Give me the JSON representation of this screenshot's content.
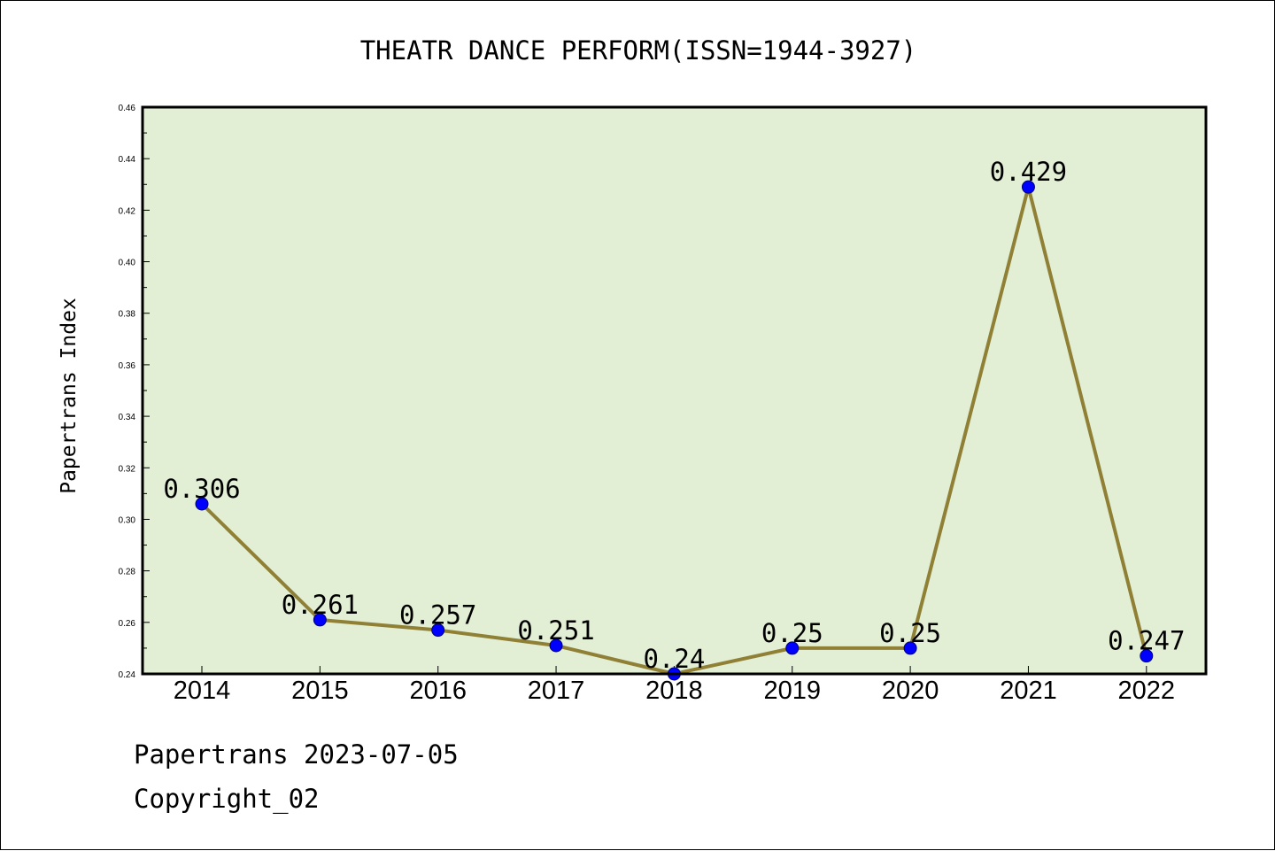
{
  "chart_data": {
    "type": "line",
    "title": "THEATR DANCE PERFORM(ISSN=1944-3927)",
    "xlabel": "",
    "ylabel": "Papertrans Index",
    "categories": [
      "2014",
      "2015",
      "2016",
      "2017",
      "2018",
      "2019",
      "2020",
      "2021",
      "2022"
    ],
    "series": [
      {
        "values": [
          0.306,
          0.261,
          0.257,
          0.251,
          0.24,
          0.25,
          0.25,
          0.429,
          0.247
        ],
        "labels": [
          "0.306",
          "0.261",
          "0.257",
          "0.251",
          "0.24",
          "0.25",
          "0.25",
          "0.429",
          "0.247"
        ]
      }
    ],
    "ylim": [
      0.24,
      0.46
    ],
    "yticks": [
      "0.24",
      "0.26",
      "0.28",
      "0.30",
      "0.32",
      "0.34",
      "0.36",
      "0.38",
      "0.40",
      "0.42",
      "0.44",
      "0.46"
    ],
    "grid": false,
    "colors": {
      "plot_background": "#e2efd5",
      "line": "#8f8035",
      "marker": "#0000ff",
      "marker_edge": "#00007a"
    }
  },
  "footer": {
    "line1": "Papertrans 2023-07-05",
    "line2": "Copyright_02"
  }
}
